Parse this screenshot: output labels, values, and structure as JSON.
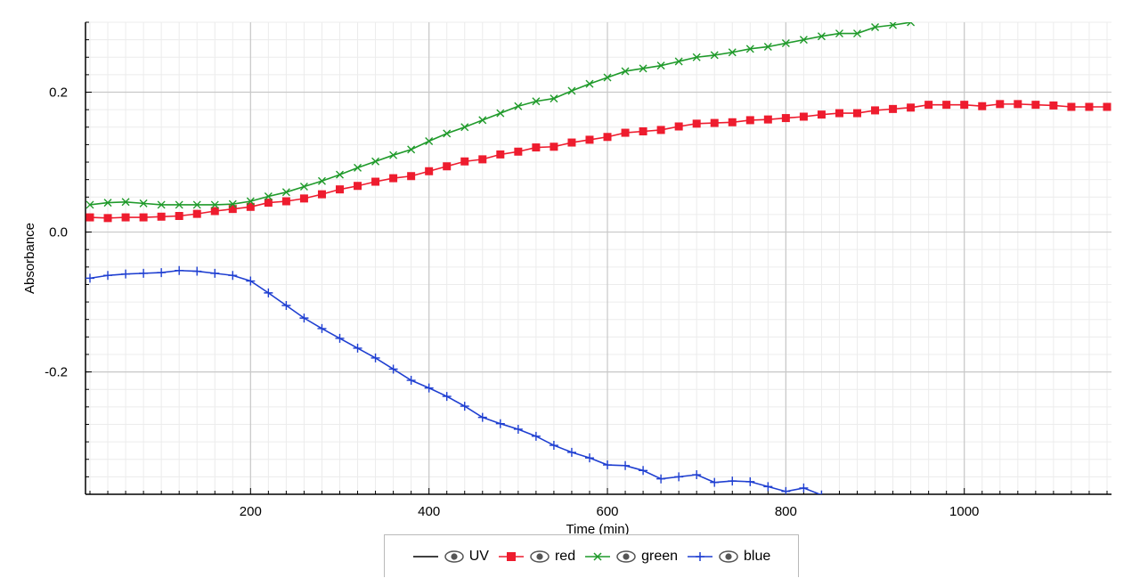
{
  "chart_data": {
    "type": "line",
    "xlabel": "Time (min)",
    "ylabel": "Absorbance",
    "xlim": [
      15,
      1165
    ],
    "ylim": [
      -0.375,
      0.3
    ],
    "xticks": [
      200,
      400,
      600,
      800,
      1000
    ],
    "yticks": [
      -0.2,
      0.0,
      0.2
    ],
    "xtick_labels": [
      "200",
      "400",
      "600",
      "800",
      "1000"
    ],
    "ytick_labels": [
      "-0.2",
      "0.0",
      "0.2"
    ],
    "grid": true,
    "legend_position": "bottom-center",
    "series": [
      {
        "name": "UV",
        "color": "#000000",
        "marker": "none",
        "x": [],
        "y": []
      },
      {
        "name": "red",
        "color": "#ee1c2e",
        "marker": "square",
        "x": [
          20,
          40,
          60,
          80,
          100,
          120,
          140,
          160,
          180,
          200,
          220,
          240,
          260,
          280,
          300,
          320,
          340,
          360,
          380,
          400,
          420,
          440,
          460,
          480,
          500,
          520,
          540,
          560,
          580,
          600,
          620,
          640,
          660,
          680,
          700,
          720,
          740,
          760,
          780,
          800,
          820,
          840,
          860,
          880,
          900,
          920,
          940,
          960,
          980,
          1000,
          1020,
          1040,
          1060,
          1080,
          1100,
          1120,
          1140,
          1160
        ],
        "y": [
          0.021,
          0.02,
          0.021,
          0.021,
          0.022,
          0.023,
          0.026,
          0.03,
          0.033,
          0.036,
          0.042,
          0.044,
          0.048,
          0.054,
          0.061,
          0.066,
          0.072,
          0.077,
          0.08,
          0.087,
          0.094,
          0.101,
          0.104,
          0.111,
          0.115,
          0.121,
          0.122,
          0.128,
          0.132,
          0.136,
          0.142,
          0.144,
          0.146,
          0.151,
          0.155,
          0.156,
          0.157,
          0.16,
          0.161,
          0.163,
          0.165,
          0.168,
          0.17,
          0.17,
          0.174,
          0.176,
          0.178,
          0.182,
          0.182,
          0.182,
          0.18,
          0.183,
          0.183,
          0.182,
          0.181,
          0.179,
          0.179,
          0.179
        ]
      },
      {
        "name": "green",
        "color": "#1f9a2a",
        "marker": "x",
        "x": [
          20,
          40,
          60,
          80,
          100,
          120,
          140,
          160,
          180,
          200,
          220,
          240,
          260,
          280,
          300,
          320,
          340,
          360,
          380,
          400,
          420,
          440,
          460,
          480,
          500,
          520,
          540,
          560,
          580,
          600,
          620,
          640,
          660,
          680,
          700,
          720,
          740,
          760,
          780,
          800,
          820,
          840,
          860,
          880,
          900,
          920,
          940
        ],
        "y": [
          0.039,
          0.042,
          0.043,
          0.041,
          0.039,
          0.039,
          0.039,
          0.039,
          0.04,
          0.044,
          0.051,
          0.057,
          0.065,
          0.073,
          0.082,
          0.092,
          0.101,
          0.11,
          0.118,
          0.13,
          0.141,
          0.15,
          0.16,
          0.17,
          0.18,
          0.187,
          0.191,
          0.202,
          0.212,
          0.221,
          0.23,
          0.234,
          0.238,
          0.244,
          0.25,
          0.253,
          0.257,
          0.262,
          0.265,
          0.27,
          0.275,
          0.28,
          0.284,
          0.284,
          0.293,
          0.296,
          0.3
        ]
      },
      {
        "name": "blue",
        "color": "#1f3fd1",
        "marker": "plus",
        "x": [
          20,
          40,
          60,
          80,
          100,
          120,
          140,
          160,
          180,
          200,
          220,
          240,
          260,
          280,
          300,
          320,
          340,
          360,
          380,
          400,
          420,
          440,
          460,
          480,
          500,
          520,
          540,
          560,
          580,
          600,
          620,
          640,
          660,
          680,
          700,
          720,
          740,
          760,
          780,
          800,
          820,
          840
        ],
        "y": [
          -0.066,
          -0.062,
          -0.06,
          -0.059,
          -0.058,
          -0.055,
          -0.056,
          -0.059,
          -0.062,
          -0.07,
          -0.087,
          -0.105,
          -0.123,
          -0.138,
          -0.152,
          -0.166,
          -0.18,
          -0.196,
          -0.212,
          -0.223,
          -0.235,
          -0.249,
          -0.265,
          -0.274,
          -0.282,
          -0.292,
          -0.305,
          -0.315,
          -0.323,
          -0.333,
          -0.334,
          -0.341,
          -0.353,
          -0.35,
          -0.347,
          -0.358,
          -0.356,
          -0.357,
          -0.364,
          -0.371,
          -0.366,
          -0.376
        ]
      }
    ]
  },
  "legend": {
    "items": [
      {
        "label": "UV"
      },
      {
        "label": "red"
      },
      {
        "label": "green"
      },
      {
        "label": "blue"
      }
    ]
  }
}
